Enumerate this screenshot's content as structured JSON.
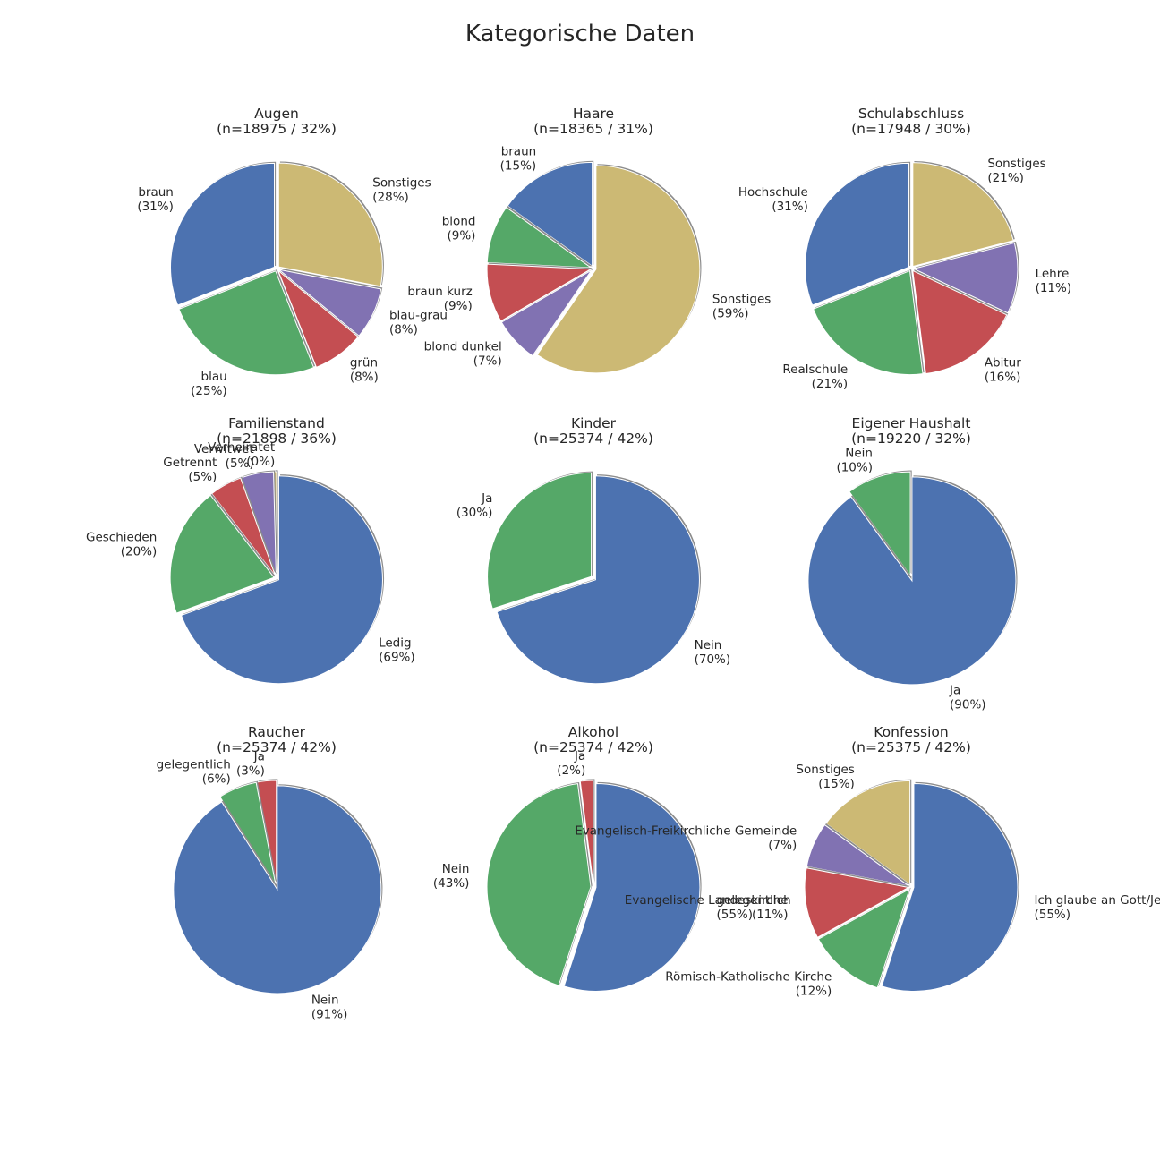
{
  "title": "Kategorische Daten",
  "palette": [
    "#4c72b0",
    "#55a868",
    "#c44e52",
    "#8172b2",
    "#ccb974"
  ],
  "chart_data": [
    {
      "type": "pie",
      "title": "Augen",
      "subtitle": "(n=18975 / 32%)",
      "startangle": 90,
      "slices": [
        {
          "label": "braun",
          "pct": "(31%)",
          "value": 31,
          "color": "#4c72b0"
        },
        {
          "label": "blau",
          "pct": "(25%)",
          "value": 25,
          "color": "#55a868"
        },
        {
          "label": "grün",
          "pct": "(8%)",
          "value": 8,
          "color": "#c44e52"
        },
        {
          "label": "blau-grau",
          "pct": "(8%)",
          "value": 8,
          "color": "#8172b2"
        },
        {
          "label": "Sonstiges",
          "pct": "(28%)",
          "value": 28,
          "color": "#ccb974"
        }
      ]
    },
    {
      "type": "pie",
      "title": "Haare",
      "subtitle": "(n=18365 / 31%)",
      "startangle": 90,
      "slices": [
        {
          "label": "braun",
          "pct": "(15%)",
          "value": 15,
          "color": "#4c72b0"
        },
        {
          "label": "blond",
          "pct": "(9%)",
          "value": 9,
          "color": "#55a868"
        },
        {
          "label": "braun kurz",
          "pct": "(9%)",
          "value": 9,
          "color": "#c44e52"
        },
        {
          "label": "blond dunkel",
          "pct": "(7%)",
          "value": 7,
          "color": "#8172b2"
        },
        {
          "label": "Sonstiges",
          "pct": "(59%)",
          "value": 59,
          "color": "#ccb974"
        }
      ]
    },
    {
      "type": "pie",
      "title": "Schulabschluss",
      "subtitle": "(n=17948 / 30%)",
      "startangle": 90,
      "slices": [
        {
          "label": "Hochschule",
          "pct": "(31%)",
          "value": 31,
          "color": "#4c72b0"
        },
        {
          "label": "Realschule",
          "pct": "(21%)",
          "value": 21,
          "color": "#55a868"
        },
        {
          "label": "Abitur",
          "pct": "(16%)",
          "value": 16,
          "color": "#c44e52"
        },
        {
          "label": "Lehre",
          "pct": "(11%)",
          "value": 11,
          "color": "#8172b2"
        },
        {
          "label": "Sonstiges",
          "pct": "(21%)",
          "value": 21,
          "color": "#ccb974"
        }
      ]
    },
    {
      "type": "pie",
      "title": "Familienstand",
      "subtitle": "(n=21898 / 36%)",
      "startangle": 90,
      "slices": [
        {
          "label": "Verheiratet",
          "pct": "(0%)",
          "value": 0.4,
          "color": "#ccb974"
        },
        {
          "label": "Verwitwet",
          "pct": "(5%)",
          "value": 5,
          "color": "#8172b2"
        },
        {
          "label": "Getrennt",
          "pct": "(5%)",
          "value": 5,
          "color": "#c44e52"
        },
        {
          "label": "Geschieden",
          "pct": "(20%)",
          "value": 20,
          "color": "#55a868"
        },
        {
          "label": "Ledig",
          "pct": "(69%)",
          "value": 69,
          "color": "#4c72b0"
        }
      ]
    },
    {
      "type": "pie",
      "title": "Kinder",
      "subtitle": "(n=25374 / 42%)",
      "startangle": 90,
      "slices": [
        {
          "label": "Ja",
          "pct": "(30%)",
          "value": 30,
          "color": "#55a868"
        },
        {
          "label": "Nein",
          "pct": "(70%)",
          "value": 70,
          "color": "#4c72b0"
        }
      ]
    },
    {
      "type": "pie",
      "title": "Eigener Haushalt",
      "subtitle": "(n=19220 / 32%)",
      "startangle": 90,
      "slices": [
        {
          "label": "Nein",
          "pct": "(10%)",
          "value": 10,
          "color": "#55a868"
        },
        {
          "label": "Ja",
          "pct": "(90%)",
          "value": 90,
          "color": "#4c72b0"
        }
      ]
    },
    {
      "type": "pie",
      "title": "Raucher",
      "subtitle": "(n=25374 / 42%)",
      "startangle": 90,
      "slices": [
        {
          "label": "Ja",
          "pct": "(3%)",
          "value": 3,
          "color": "#c44e52"
        },
        {
          "label": "gelegentlich",
          "pct": "(6%)",
          "value": 6,
          "color": "#55a868"
        },
        {
          "label": "Nein",
          "pct": "(91%)",
          "value": 91,
          "color": "#4c72b0"
        }
      ]
    },
    {
      "type": "pie",
      "title": "Alkohol",
      "subtitle": "(n=25374 / 42%)",
      "startangle": 90,
      "slices": [
        {
          "label": "Ja",
          "pct": "(2%)",
          "value": 2,
          "color": "#c44e52"
        },
        {
          "label": "Nein",
          "pct": "(43%)",
          "value": 43,
          "color": "#55a868"
        },
        {
          "label": "gelegentlich",
          "pct": "(55%)",
          "value": 55,
          "color": "#4c72b0"
        }
      ]
    },
    {
      "type": "pie",
      "title": "Konfession",
      "subtitle": "(n=25375 / 42%)",
      "startangle": 90,
      "slices": [
        {
          "label": "Sonstiges",
          "pct": "(15%)",
          "value": 15,
          "color": "#ccb974"
        },
        {
          "label": "Evangelisch-Freikirchliche Gemeinde",
          "pct": "(7%)",
          "value": 7,
          "color": "#8172b2"
        },
        {
          "label": "Evangelische Landeskirche",
          "pct": "(11%)",
          "value": 11,
          "color": "#c44e52"
        },
        {
          "label": "Römisch-Katholische Kirche",
          "pct": "(12%)",
          "value": 12,
          "color": "#55a868"
        },
        {
          "label": "Ich glaube an Gott/Jesus",
          "pct": "(55%)",
          "value": 55,
          "color": "#4c72b0"
        }
      ]
    }
  ]
}
